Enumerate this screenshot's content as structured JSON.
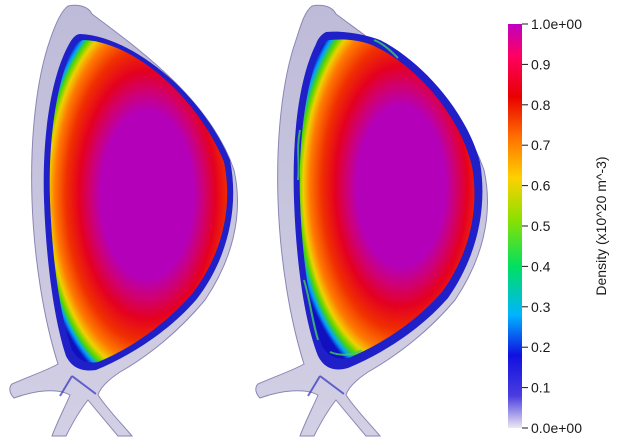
{
  "colorbar": {
    "title": "Density (x10^20 m^-3)",
    "ticks": [
      {
        "value": 1.0,
        "label": "1.0e+00"
      },
      {
        "value": 0.9,
        "label": "0.9"
      },
      {
        "value": 0.8,
        "label": "0.8"
      },
      {
        "value": 0.7,
        "label": "0.7"
      },
      {
        "value": 0.6,
        "label": "0.6"
      },
      {
        "value": 0.5,
        "label": "0.5"
      },
      {
        "value": 0.4,
        "label": "0.4"
      },
      {
        "value": 0.3,
        "label": "0.3"
      },
      {
        "value": 0.2,
        "label": "0.2"
      },
      {
        "value": 0.1,
        "label": "0.1"
      },
      {
        "value": 0.0,
        "label": "0.0e+00"
      }
    ],
    "range": [
      0.0,
      1.0
    ],
    "colormap": [
      "#e8e4f0",
      "#2020d0",
      "#00c8ff",
      "#00e000",
      "#e0e000",
      "#ff8000",
      "#e00000",
      "#ff0060",
      "#c000c0"
    ]
  },
  "panels": [
    {
      "name": "left-density-slice",
      "edge_perturbed": false
    },
    {
      "name": "right-density-slice",
      "edge_perturbed": true
    }
  ]
}
